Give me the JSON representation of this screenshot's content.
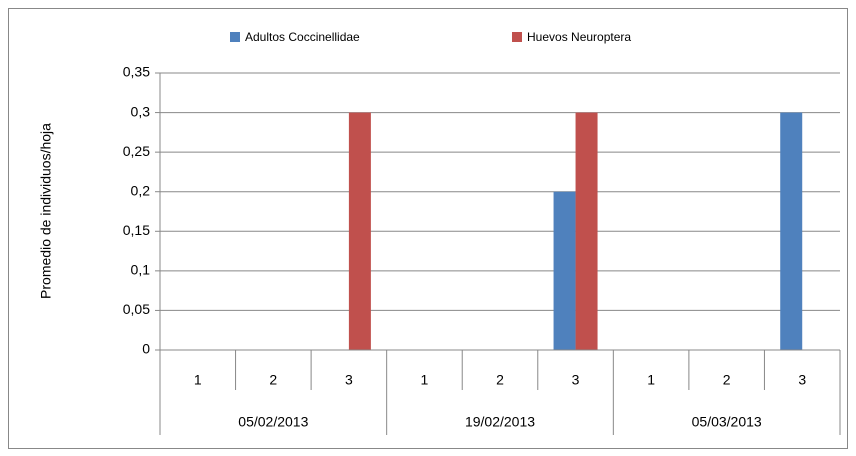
{
  "chart_data": {
    "type": "bar",
    "y_axis_label": "Promedio de individuos/hoja",
    "categories": [
      "1",
      "2",
      "3",
      "1",
      "2",
      "3",
      "1",
      "2",
      "3"
    ],
    "category_groups": [
      "05/02/2013",
      "19/02/2013",
      "05/03/2013"
    ],
    "series": [
      {
        "name": "Adultos Coccinellidae",
        "color": "#4f81bd",
        "values": [
          0,
          0,
          0,
          0,
          0,
          0.2,
          0,
          0,
          0.3
        ]
      },
      {
        "name": "Huevos Neuroptera",
        "color": "#c0504d",
        "values": [
          0,
          0,
          0.3,
          0,
          0,
          0.3,
          0,
          0,
          0
        ]
      }
    ],
    "ylim": [
      0,
      0.35
    ],
    "yticks": [
      0,
      {
        "value": 0.05,
        "label": "0,05"
      },
      {
        "value": 0.1,
        "label": "0,1"
      },
      {
        "value": 0.15,
        "label": "0,15"
      },
      {
        "value": 0.2,
        "label": "0,2"
      },
      {
        "value": 0.25,
        "label": "0,25"
      },
      {
        "value": 0.3,
        "label": "0,3"
      },
      {
        "value": 0.35,
        "label": "0,35"
      }
    ],
    "grid": true,
    "legend": "top"
  }
}
